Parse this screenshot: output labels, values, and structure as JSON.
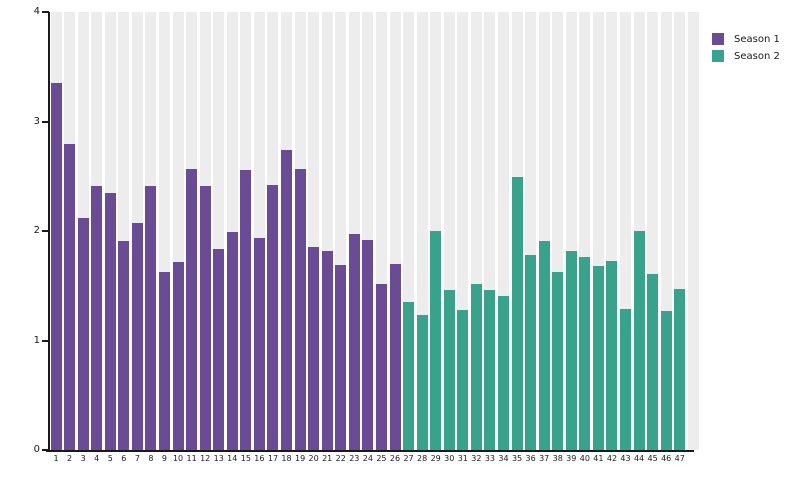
{
  "chart_data": {
    "type": "bar",
    "title": "",
    "xlabel": "",
    "ylabel": "",
    "ylim": [
      0,
      4
    ],
    "yticks": [
      "0",
      "1",
      "2",
      "3",
      "4"
    ],
    "grid": false,
    "background_stripes": true,
    "legend_position": "top-right",
    "categories": [
      "1",
      "2",
      "3",
      "4",
      "5",
      "6",
      "7",
      "8",
      "9",
      "10",
      "11",
      "12",
      "13",
      "14",
      "15",
      "16",
      "17",
      "18",
      "19",
      "20",
      "21",
      "22",
      "23",
      "24",
      "25",
      "26",
      "27",
      "28",
      "29",
      "30",
      "31",
      "32",
      "33",
      "34",
      "35",
      "36",
      "37",
      "38",
      "39",
      "40",
      "41",
      "42",
      "43",
      "44",
      "45",
      "46",
      "47"
    ],
    "series": [
      {
        "name": "Season 1",
        "color": "#6a4b95",
        "categories": [
          "1",
          "2",
          "3",
          "4",
          "5",
          "6",
          "7",
          "8",
          "9",
          "10",
          "11",
          "12",
          "13",
          "14",
          "15",
          "16",
          "17",
          "18",
          "19",
          "20",
          "21",
          "22",
          "23",
          "24",
          "25",
          "26"
        ],
        "values": [
          3.35,
          2.79,
          2.12,
          2.41,
          2.35,
          1.91,
          2.07,
          2.41,
          1.63,
          1.72,
          2.57,
          2.41,
          1.84,
          1.99,
          2.56,
          1.94,
          2.42,
          2.74,
          2.57,
          1.85,
          1.82,
          1.69,
          1.97,
          1.92,
          1.52,
          1.7
        ]
      },
      {
        "name": "Season 2",
        "color": "#38a38b",
        "categories": [
          "27",
          "28",
          "29",
          "30",
          "31",
          "32",
          "33",
          "34",
          "35",
          "36",
          "37",
          "38",
          "39",
          "40",
          "41",
          "42",
          "43",
          "44",
          "45",
          "46",
          "47"
        ],
        "values": [
          1.35,
          1.23,
          2.0,
          1.46,
          1.28,
          1.52,
          1.46,
          1.41,
          2.49,
          1.78,
          1.91,
          1.63,
          1.82,
          1.76,
          1.68,
          1.73,
          1.29,
          2.0,
          1.61,
          1.27,
          1.47
        ]
      }
    ]
  },
  "colors": {
    "season1": "#6a4b95",
    "season2": "#38a38b",
    "stripe": "#ededed",
    "axis": "#1a1a1a",
    "background": "#ffffff"
  },
  "legend": {
    "items": [
      {
        "label": "Season 1"
      },
      {
        "label": "Season 2"
      }
    ]
  }
}
